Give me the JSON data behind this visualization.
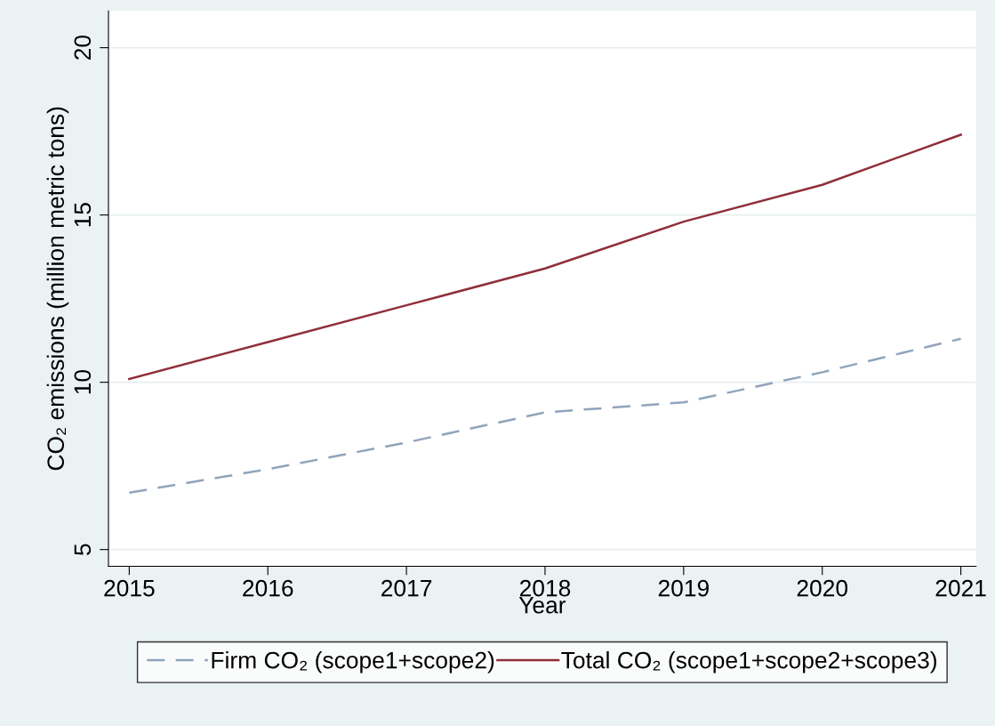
{
  "chart_data": {
    "type": "line",
    "xlabel": "Year",
    "ylabel": "CO₂ emissions (million metric tons)",
    "x": [
      2015,
      2016,
      2017,
      2018,
      2019,
      2020,
      2021
    ],
    "series": [
      {
        "name": "Firm CO₂ (scope1+scope2)",
        "color": "#91a4bb",
        "line_style": "dashed",
        "values": [
          6.7,
          7.4,
          8.2,
          9.1,
          9.4,
          10.3,
          11.3
        ]
      },
      {
        "name": "Total CO₂ (scope1+scope2+scope3)",
        "color": "#8f2f3a",
        "line_style": "solid",
        "values": [
          10.1,
          11.2,
          12.3,
          13.4,
          14.8,
          15.9,
          17.4
        ]
      }
    ],
    "xlim": [
      2014.85,
      2021.11
    ],
    "xticks": [
      2015,
      2016,
      2017,
      2018,
      2019,
      2020,
      2021
    ],
    "ylim": [
      4.5,
      21.1
    ],
    "yticks": [
      5,
      10,
      15,
      20
    ],
    "grid": "y",
    "legend": "bottom",
    "marker": "none"
  }
}
